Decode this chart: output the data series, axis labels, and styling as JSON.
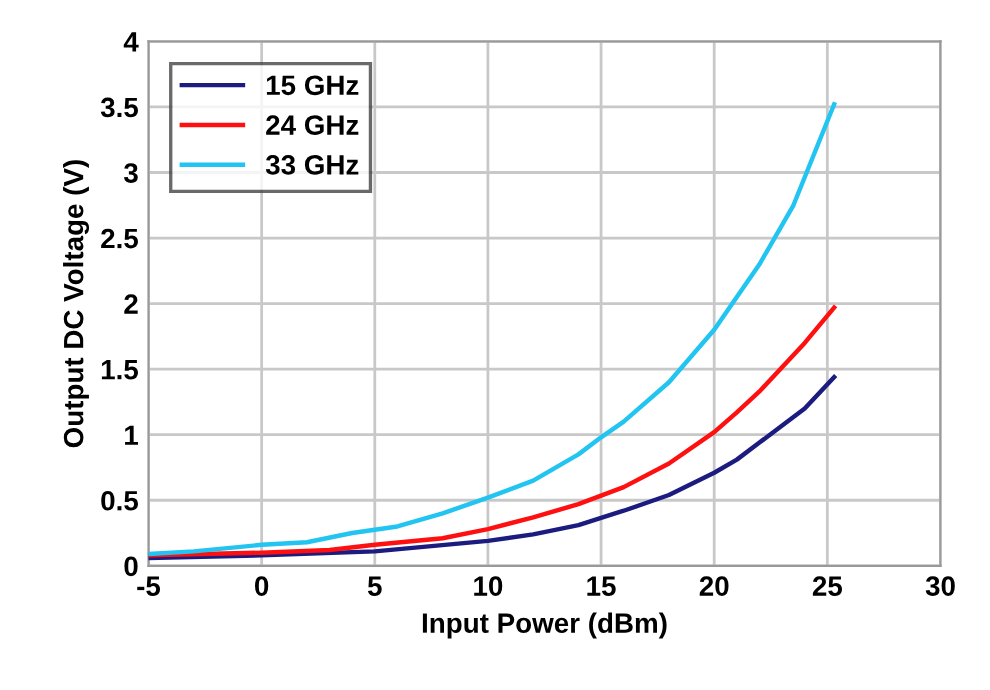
{
  "chart_data": {
    "type": "line",
    "xlabel": "Input Power (dBm)",
    "ylabel": "Output DC Voltage (V)",
    "xlim": [
      -5,
      30
    ],
    "xticks": [
      -5,
      0,
      5,
      10,
      15,
      20,
      25,
      30
    ],
    "ylim": [
      0,
      4
    ],
    "yticks": [
      0,
      0.5,
      1,
      1.5,
      2,
      2.5,
      3,
      3.5,
      4
    ],
    "grid": true,
    "legend": "top left",
    "series": [
      {
        "name": "15 GHz",
        "color": "#1c1c80",
        "x": [
          -5,
          0,
          5,
          10,
          12,
          14,
          16,
          18,
          20,
          21,
          22,
          24,
          25.3
        ],
        "values": [
          0.06,
          0.08,
          0.11,
          0.19,
          0.24,
          0.31,
          0.42,
          0.54,
          0.71,
          0.81,
          0.94,
          1.2,
          1.44
        ]
      },
      {
        "name": "24 GHz",
        "color": "#ff1010",
        "x": [
          -5,
          0,
          3,
          5,
          8,
          10,
          12,
          14,
          16,
          18,
          20,
          21,
          22,
          24,
          25.3
        ],
        "values": [
          0.08,
          0.1,
          0.12,
          0.16,
          0.21,
          0.28,
          0.37,
          0.47,
          0.6,
          0.78,
          1.02,
          1.17,
          1.33,
          1.7,
          1.97
        ]
      },
      {
        "name": "33 GHz",
        "color": "#22c4f2",
        "x": [
          -5,
          -3,
          0,
          2,
          4,
          6,
          8,
          10,
          12,
          14,
          15,
          16,
          18,
          20,
          22,
          23.5,
          25.3
        ],
        "values": [
          0.09,
          0.11,
          0.16,
          0.18,
          0.25,
          0.3,
          0.4,
          0.52,
          0.65,
          0.85,
          0.98,
          1.1,
          1.4,
          1.8,
          2.3,
          2.75,
          3.52
        ]
      }
    ]
  }
}
